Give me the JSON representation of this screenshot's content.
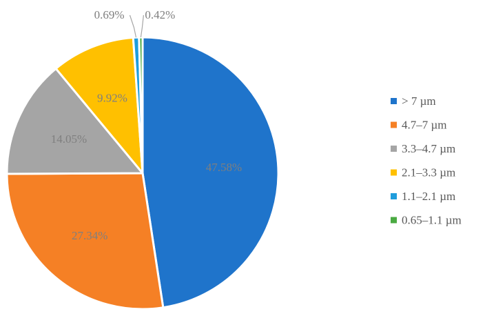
{
  "chart_data": {
    "type": "pie",
    "title": "",
    "categories": [
      "> 7 µm",
      "4.7–7 µm",
      "3.3–4.7 µm",
      "2.1–3.3 µm",
      "1.1–2.1 µm",
      "0.65–1.1 µm"
    ],
    "values": [
      47.58,
      27.34,
      14.05,
      9.92,
      0.69,
      0.42
    ],
    "labels": [
      "47.58%",
      "27.34%",
      "14.05%",
      "9.92%",
      "0.69%",
      "0.42%"
    ],
    "colors": [
      "#1f74cb",
      "#f58025",
      "#a5a5a5",
      "#ffc000",
      "#1f9ddc",
      "#4aaa42"
    ],
    "start_angle": "12 o'clock",
    "direction": "clockwise",
    "legend": "right"
  }
}
